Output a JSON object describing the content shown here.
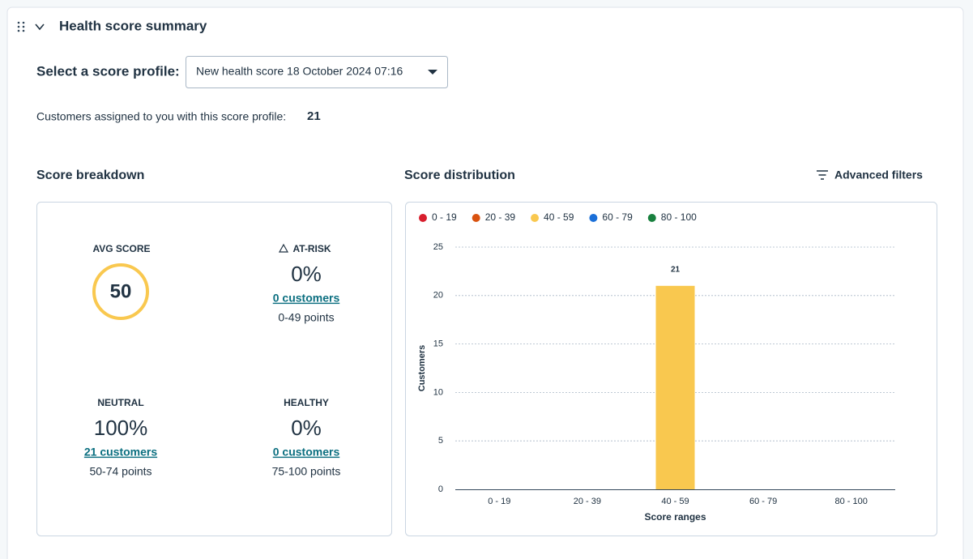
{
  "header": {
    "title": "Health score summary"
  },
  "profile": {
    "label": "Select a score profile:",
    "selected": "New health score 18 October 2024 07:16"
  },
  "assigned": {
    "label": "Customers assigned to you with this score profile:",
    "count": 21
  },
  "breakdown": {
    "title": "Score breakdown",
    "avg": {
      "label": "AVG SCORE",
      "value": 50
    },
    "cards": [
      {
        "label": "AT-RISK",
        "percent": "0%",
        "link": "0 customers",
        "range": "0-49 points"
      },
      {
        "label": "NEUTRAL",
        "percent": "100%",
        "link": "21 customers",
        "range": "50-74 points"
      },
      {
        "label": "HEALTHY",
        "percent": "0%",
        "link": "0 customers",
        "range": "75-100 points"
      }
    ]
  },
  "filters": {
    "label": "Advanced filters"
  },
  "chart_data": {
    "type": "bar",
    "title": "Score distribution",
    "categories": [
      "0 - 19",
      "20 - 39",
      "40 - 59",
      "60 - 79",
      "80 - 100"
    ],
    "values": [
      0,
      0,
      21,
      0,
      0
    ],
    "colors": [
      "#d81e2d",
      "#d9520f",
      "#f9c84f",
      "#1a6fd8",
      "#18803e"
    ],
    "xlabel": "Score ranges",
    "ylabel": "Customers",
    "ylim": [
      0,
      25
    ],
    "yticks": [
      0,
      5,
      10,
      15,
      20,
      25
    ],
    "grid": true
  }
}
